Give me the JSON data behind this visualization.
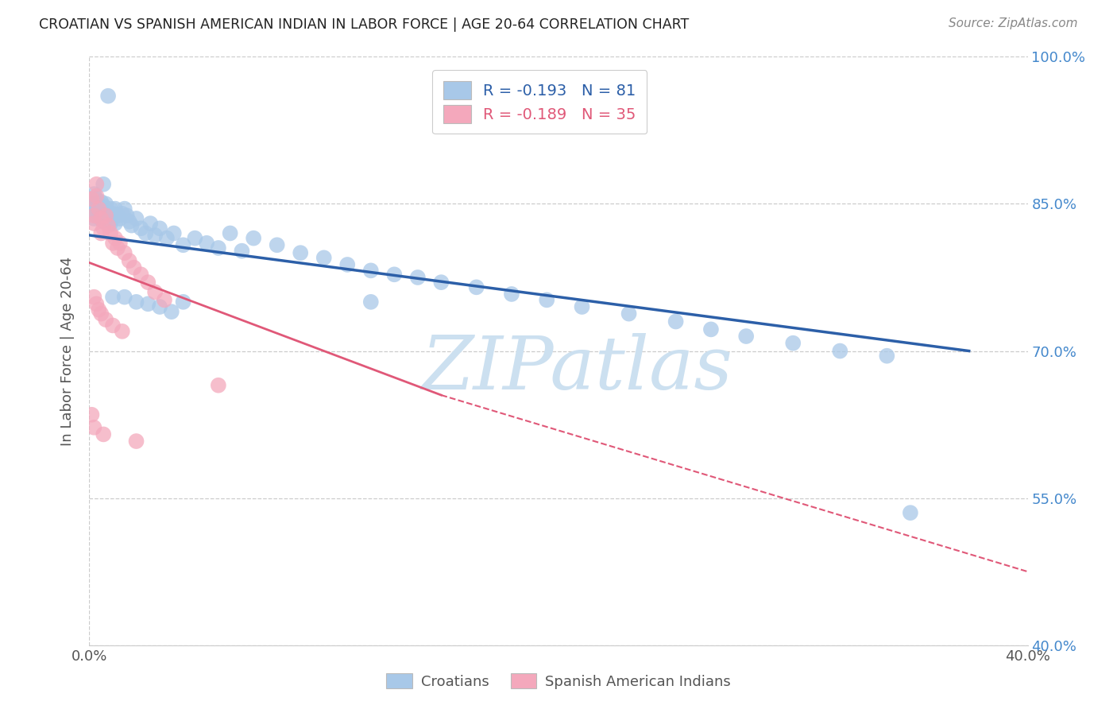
{
  "title": "CROATIAN VS SPANISH AMERICAN INDIAN IN LABOR FORCE | AGE 20-64 CORRELATION CHART",
  "source": "Source: ZipAtlas.com",
  "ylabel": "In Labor Force | Age 20-64",
  "xlim": [
    0.0,
    0.4
  ],
  "ylim": [
    0.4,
    1.0
  ],
  "yticks": [
    0.4,
    0.55,
    0.7,
    0.85,
    1.0
  ],
  "ytick_labels": [
    "40.0%",
    "55.0%",
    "70.0%",
    "85.0%",
    "100.0%"
  ],
  "xtick_labels": [
    "0.0%",
    "",
    "",
    "",
    "",
    "",
    "",
    "",
    "40.0%"
  ],
  "croatian_color": "#a8c8e8",
  "spanish_color": "#f4a8bc",
  "trend_croatian_color": "#2c5fa8",
  "trend_spanish_color": "#e05878",
  "grid_color": "#cccccc",
  "title_color": "#222222",
  "right_axis_color": "#4488cc",
  "source_color": "#888888",
  "watermark": "ZIPatlas",
  "watermark_color": "#cce0f0",
  "background_color": "#ffffff",
  "croatian_x": [
    0.001,
    0.001,
    0.002,
    0.002,
    0.002,
    0.002,
    0.003,
    0.003,
    0.003,
    0.004,
    0.004,
    0.004,
    0.005,
    0.005,
    0.005,
    0.006,
    0.006,
    0.006,
    0.007,
    0.007,
    0.007,
    0.008,
    0.008,
    0.009,
    0.009,
    0.01,
    0.01,
    0.011,
    0.011,
    0.012,
    0.013,
    0.014,
    0.015,
    0.016,
    0.017,
    0.018,
    0.02,
    0.022,
    0.024,
    0.026,
    0.028,
    0.03,
    0.033,
    0.036,
    0.04,
    0.045,
    0.05,
    0.055,
    0.06,
    0.065,
    0.07,
    0.08,
    0.09,
    0.1,
    0.11,
    0.12,
    0.13,
    0.14,
    0.15,
    0.165,
    0.18,
    0.195,
    0.21,
    0.23,
    0.25,
    0.265,
    0.28,
    0.3,
    0.32,
    0.34,
    0.006,
    0.008,
    0.01,
    0.015,
    0.02,
    0.025,
    0.03,
    0.035,
    0.04,
    0.12,
    0.35
  ],
  "croatian_y": [
    0.855,
    0.845,
    0.85,
    0.84,
    0.86,
    0.835,
    0.85,
    0.855,
    0.845,
    0.848,
    0.84,
    0.836,
    0.843,
    0.852,
    0.838,
    0.848,
    0.84,
    0.832,
    0.845,
    0.85,
    0.835,
    0.842,
    0.838,
    0.845,
    0.83,
    0.84,
    0.835,
    0.845,
    0.83,
    0.838,
    0.835,
    0.84,
    0.845,
    0.838,
    0.832,
    0.828,
    0.835,
    0.825,
    0.82,
    0.83,
    0.818,
    0.825,
    0.815,
    0.82,
    0.808,
    0.815,
    0.81,
    0.805,
    0.82,
    0.802,
    0.815,
    0.808,
    0.8,
    0.795,
    0.788,
    0.782,
    0.778,
    0.775,
    0.77,
    0.765,
    0.758,
    0.752,
    0.745,
    0.738,
    0.73,
    0.722,
    0.715,
    0.708,
    0.7,
    0.695,
    0.87,
    0.96,
    0.755,
    0.755,
    0.75,
    0.748,
    0.745,
    0.74,
    0.75,
    0.75,
    0.535
  ],
  "spanish_x": [
    0.001,
    0.002,
    0.002,
    0.003,
    0.003,
    0.004,
    0.005,
    0.005,
    0.006,
    0.007,
    0.008,
    0.009,
    0.01,
    0.011,
    0.012,
    0.013,
    0.015,
    0.017,
    0.019,
    0.022,
    0.025,
    0.028,
    0.032,
    0.002,
    0.003,
    0.004,
    0.005,
    0.007,
    0.01,
    0.014,
    0.001,
    0.002,
    0.006,
    0.02,
    0.055
  ],
  "spanish_y": [
    0.855,
    0.838,
    0.83,
    0.87,
    0.858,
    0.845,
    0.835,
    0.82,
    0.825,
    0.838,
    0.828,
    0.82,
    0.81,
    0.815,
    0.805,
    0.81,
    0.8,
    0.792,
    0.785,
    0.778,
    0.77,
    0.76,
    0.752,
    0.755,
    0.748,
    0.742,
    0.738,
    0.732,
    0.726,
    0.72,
    0.635,
    0.622,
    0.615,
    0.608,
    0.665
  ],
  "trend_croatian_x0": 0.0,
  "trend_croatian_y0": 0.818,
  "trend_croatian_x1": 0.375,
  "trend_croatian_y1": 0.7,
  "trend_spanish_solid_x0": 0.0,
  "trend_spanish_solid_y0": 0.79,
  "trend_spanish_solid_x1": 0.15,
  "trend_spanish_solid_y1": 0.655,
  "trend_spanish_dash_x0": 0.15,
  "trend_spanish_dash_y0": 0.655,
  "trend_spanish_dash_x1": 0.4,
  "trend_spanish_dash_y1": 0.475
}
